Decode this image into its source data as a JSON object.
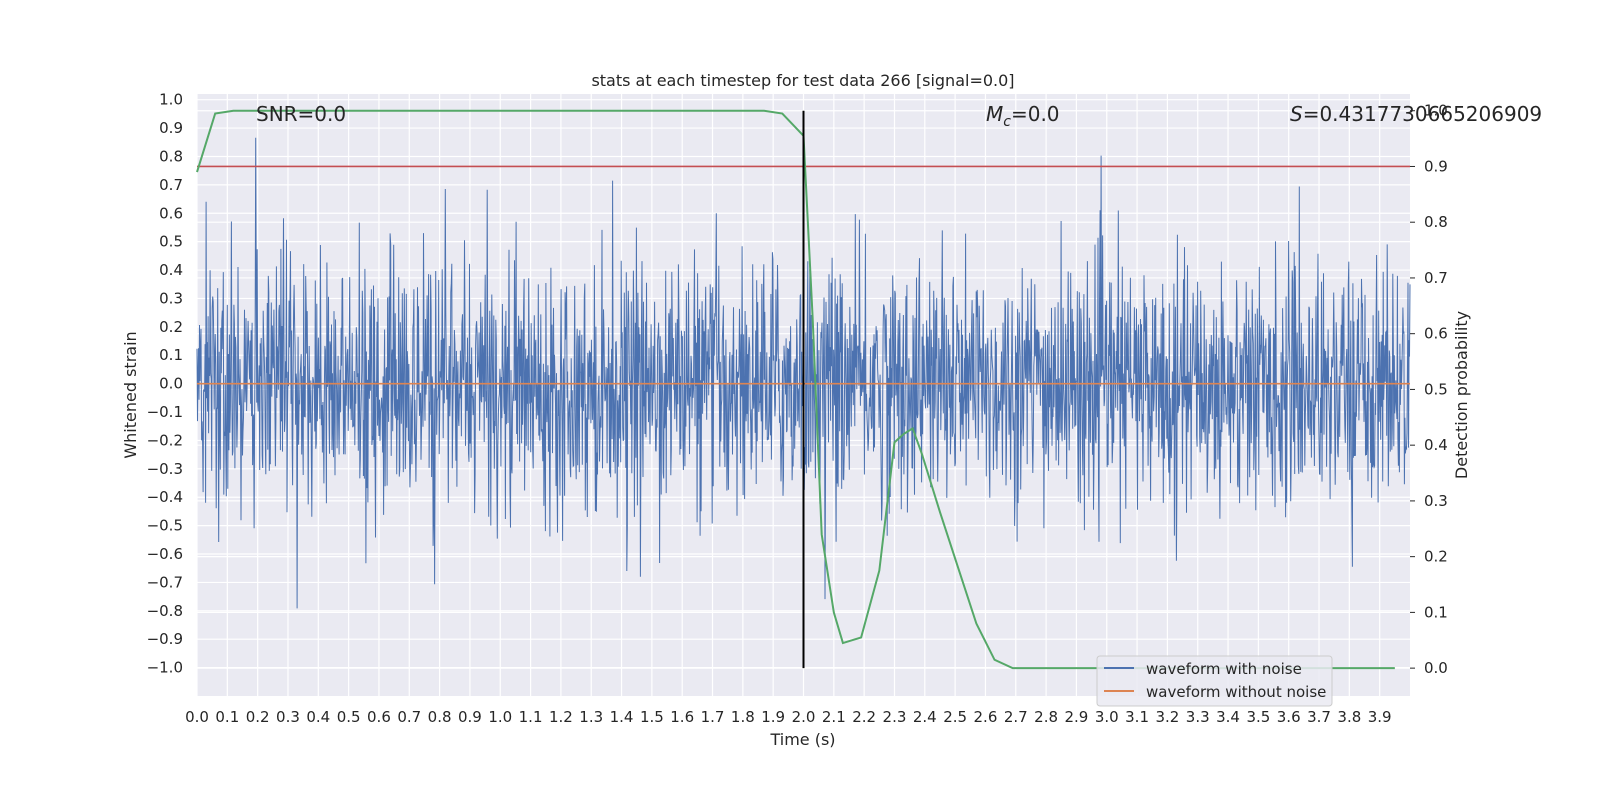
{
  "chart_data": {
    "type": "line",
    "title": "stats at each timestep for test data 266 [signal=0.0]",
    "xlabel": "Time (s)",
    "ylabel": "Whitened strain",
    "y2label": "Detection probability",
    "xlim": [
      0.0,
      4.0
    ],
    "ylim": [
      -1.1,
      1.02
    ],
    "y2lim": [
      -0.05,
      1.03
    ],
    "x_ticks": [
      "0.0",
      "0.1",
      "0.2",
      "0.3",
      "0.4",
      "0.5",
      "0.6",
      "0.7",
      "0.8",
      "0.9",
      "1.0",
      "1.1",
      "1.2",
      "1.3",
      "1.4",
      "1.5",
      "1.6",
      "1.7",
      "1.8",
      "1.9",
      "2.0",
      "2.1",
      "2.2",
      "2.3",
      "2.4",
      "2.5",
      "2.6",
      "2.7",
      "2.8",
      "2.9",
      "3.0",
      "3.1",
      "3.2",
      "3.3",
      "3.4",
      "3.5",
      "3.6",
      "3.7",
      "3.8",
      "3.9"
    ],
    "y_ticks": [
      "1.0",
      "0.9",
      "0.8",
      "0.7",
      "0.6",
      "0.5",
      "0.4",
      "0.3",
      "0.2",
      "0.1",
      "0.0",
      "−0.1",
      "−0.2",
      "−0.3",
      "−0.4",
      "−0.5",
      "−0.6",
      "−0.7",
      "−0.8",
      "−0.9",
      "−1.0"
    ],
    "y2_ticks": [
      "1.0",
      "0.9",
      "0.8",
      "0.7",
      "0.6",
      "0.5",
      "0.4",
      "0.3",
      "0.2",
      "0.1",
      "0.0"
    ],
    "grid": true,
    "legend_position": "lower-right",
    "series": [
      {
        "name": "waveform with noise",
        "color": "#4c72b0",
        "axis": "left",
        "kind": "noise",
        "y_min": -1.0,
        "y_max": 0.92
      },
      {
        "name": "waveform without noise",
        "color": "#dd8452",
        "axis": "left",
        "x": [
          0.0,
          4.0
        ],
        "y": [
          0.0,
          0.0
        ]
      }
    ],
    "probability_curve": {
      "color": "#55a868",
      "axis": "right",
      "x": [
        0.0,
        0.06,
        0.12,
        0.18,
        0.24,
        0.3,
        0.6,
        0.9,
        1.2,
        1.5,
        1.8,
        1.87,
        1.93,
        2.0,
        2.03,
        2.06,
        2.1,
        2.13,
        2.19,
        2.25,
        2.3,
        2.33,
        2.36,
        2.39,
        2.45,
        2.51,
        2.57,
        2.63,
        2.69,
        2.75,
        3.0,
        3.5,
        3.95
      ],
      "y": [
        0.89,
        0.995,
        1.0,
        1.0,
        1.0,
        1.0,
        1.0,
        1.0,
        1.0,
        1.0,
        1.0,
        1.0,
        0.995,
        0.955,
        0.63,
        0.24,
        0.1,
        0.045,
        0.055,
        0.175,
        0.405,
        0.42,
        0.43,
        0.385,
        0.28,
        0.18,
        0.08,
        0.015,
        0.0,
        0.0,
        0.0,
        0.0,
        0.0
      ]
    },
    "threshold": {
      "value": 0.9,
      "axis": "right",
      "color": "#c44e52"
    },
    "vline": {
      "x": 2.0,
      "color": "#000000"
    },
    "annotations": {
      "snr": "SNR=0.0",
      "mc_symbol": "M",
      "mc_sub": "c",
      "mc_value": "=0.0",
      "s_symbol": "S",
      "s_value": "=0.4317730665206909"
    }
  }
}
